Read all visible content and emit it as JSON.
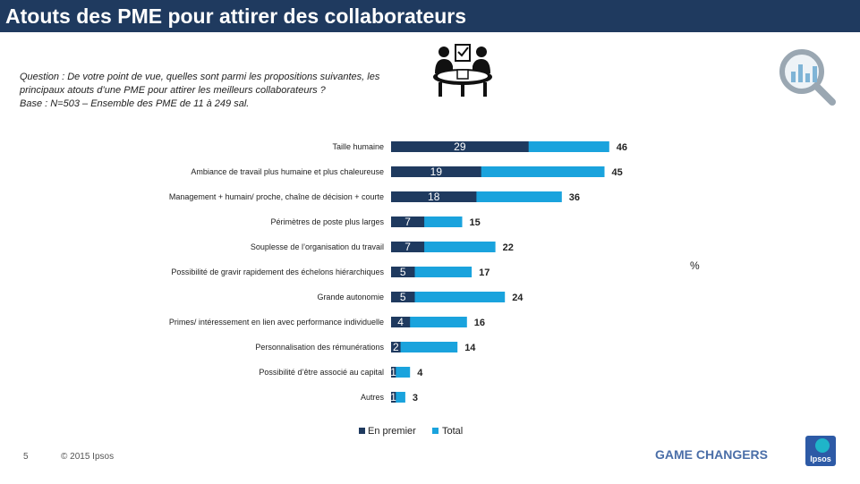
{
  "header": {
    "title": "Atouts des PME pour attirer des collaborateurs"
  },
  "question": {
    "line1": "Question : De votre point de vue, quelles sont parmi les propositions suivantes, les",
    "line2": "principaux atouts d’une PME pour attirer  les meilleurs collaborateurs ?",
    "line3": "Base : N=503 – Ensemble des PME de 11 à 249 sal."
  },
  "unit_label": "%",
  "colors": {
    "title_bar": "#1f3a5f",
    "en_premier": "#1f3a5f",
    "total": "#1aa3dd"
  },
  "icons": {
    "meeting": "meeting-table-icon",
    "analysis": "magnifier-chart-icon"
  },
  "chart_data": {
    "type": "bar",
    "orientation": "horizontal",
    "categories": [
      "Taille humaine",
      "Ambiance de travail plus humaine et plus chaleureuse",
      "Management + humain/ proche, chaîne de décision + courte",
      "Périmètres de poste plus larges",
      "Souplesse de l’organisation du travail",
      "Possibilité de gravir rapidement des échelons hiérarchiques",
      "Grande autonomie",
      "Primes/ intéressement en lien avec performance individuelle",
      "Personnalisation des rémunérations",
      "Possibilité d’être associé au capital",
      "Autres"
    ],
    "series": [
      {
        "name": "En premier",
        "values": [
          29,
          19,
          18,
          7,
          7,
          5,
          5,
          4,
          2,
          1,
          1
        ]
      },
      {
        "name": "Total",
        "values": [
          46,
          45,
          36,
          15,
          22,
          17,
          24,
          16,
          14,
          4,
          3
        ]
      }
    ],
    "legend_position": "bottom"
  },
  "footer": {
    "page": "5",
    "copyright": "© 2015 Ipsos",
    "tagline": "GAME CHANGERS",
    "logo_text": "Ipsos"
  }
}
